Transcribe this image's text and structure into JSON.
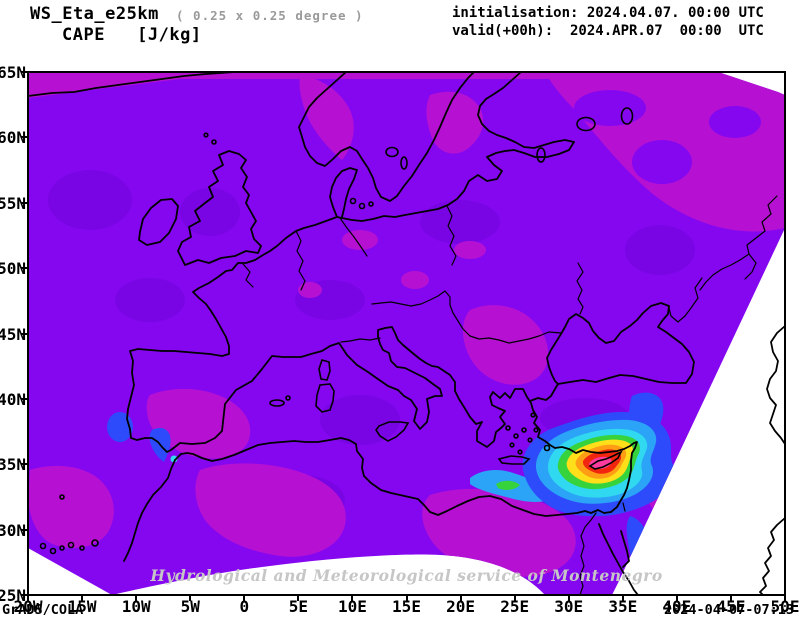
{
  "header": {
    "model_title": "WS_Eta_e25km",
    "resolution_note": "( 0.25 x 0.25 degree )",
    "variable_title": "CAPE   [J/kg]",
    "init_label": "initialisation: 2024.04.07. 00:00 UTC",
    "valid_label": "valid(+00h):  2024.APR.07  00:00  UTC"
  },
  "map": {
    "watermark": "Hydrological and Meteorological service of Montenegro",
    "x_ticks": [
      "20W",
      "15W",
      "10W",
      "5W",
      "0",
      "5E",
      "10E",
      "15E",
      "20E",
      "25E",
      "30E",
      "35E",
      "40E",
      "45E",
      "50E"
    ],
    "y_ticks": [
      "65N",
      "60N",
      "55N",
      "50N",
      "45N",
      "40N",
      "35N",
      "30N",
      "25N"
    ],
    "variable": "CAPE",
    "units": "J/kg",
    "hotspot_region": "Eastern Mediterranean / Cyprus"
  },
  "footer": {
    "left": "GrADS/COLA",
    "right": "2024-04-07-07:13"
  },
  "palette": {
    "violet": "#8507f0",
    "violet2": "#7905e4",
    "magenta": "#b611d3",
    "blue": "#2e4bfb",
    "skyblue": "#2ba3f7",
    "cyan": "#30d9ef",
    "green": "#37d33c",
    "yellow": "#ffdf1a",
    "orange": "#ff9d15",
    "red": "#f2250e",
    "pink": "#fb3b9e",
    "coastline": "#000000",
    "watermark_gray": "#c6c6c6",
    "note_gray": "#9a9a9a"
  }
}
